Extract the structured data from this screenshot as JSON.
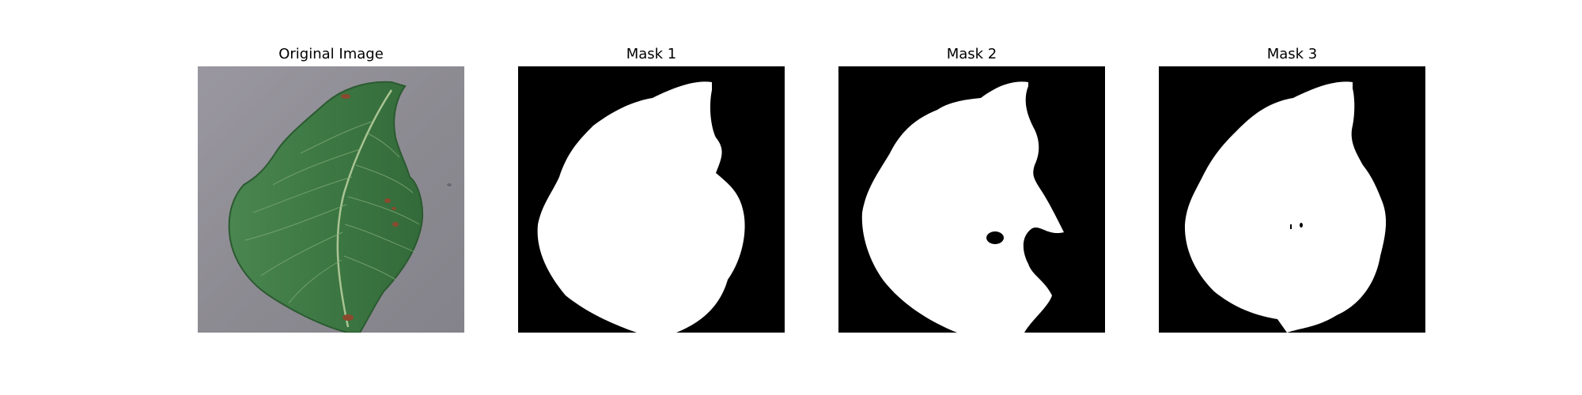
{
  "figure": {
    "panels": [
      {
        "title": "Original Image",
        "kind": "photo"
      },
      {
        "title": "Mask 1",
        "kind": "mask"
      },
      {
        "title": "Mask 2",
        "kind": "mask"
      },
      {
        "title": "Mask 3",
        "kind": "mask"
      }
    ]
  },
  "colors": {
    "background": "#ffffff",
    "mask_background": "#000000",
    "mask_foreground": "#ffffff",
    "photo_background": "#8f8d93",
    "leaf_green": "#3f7a45",
    "leaf_dark": "#2d5f34",
    "leaf_vein": "#9fb98a",
    "leaf_spot": "#8a4a2e"
  }
}
